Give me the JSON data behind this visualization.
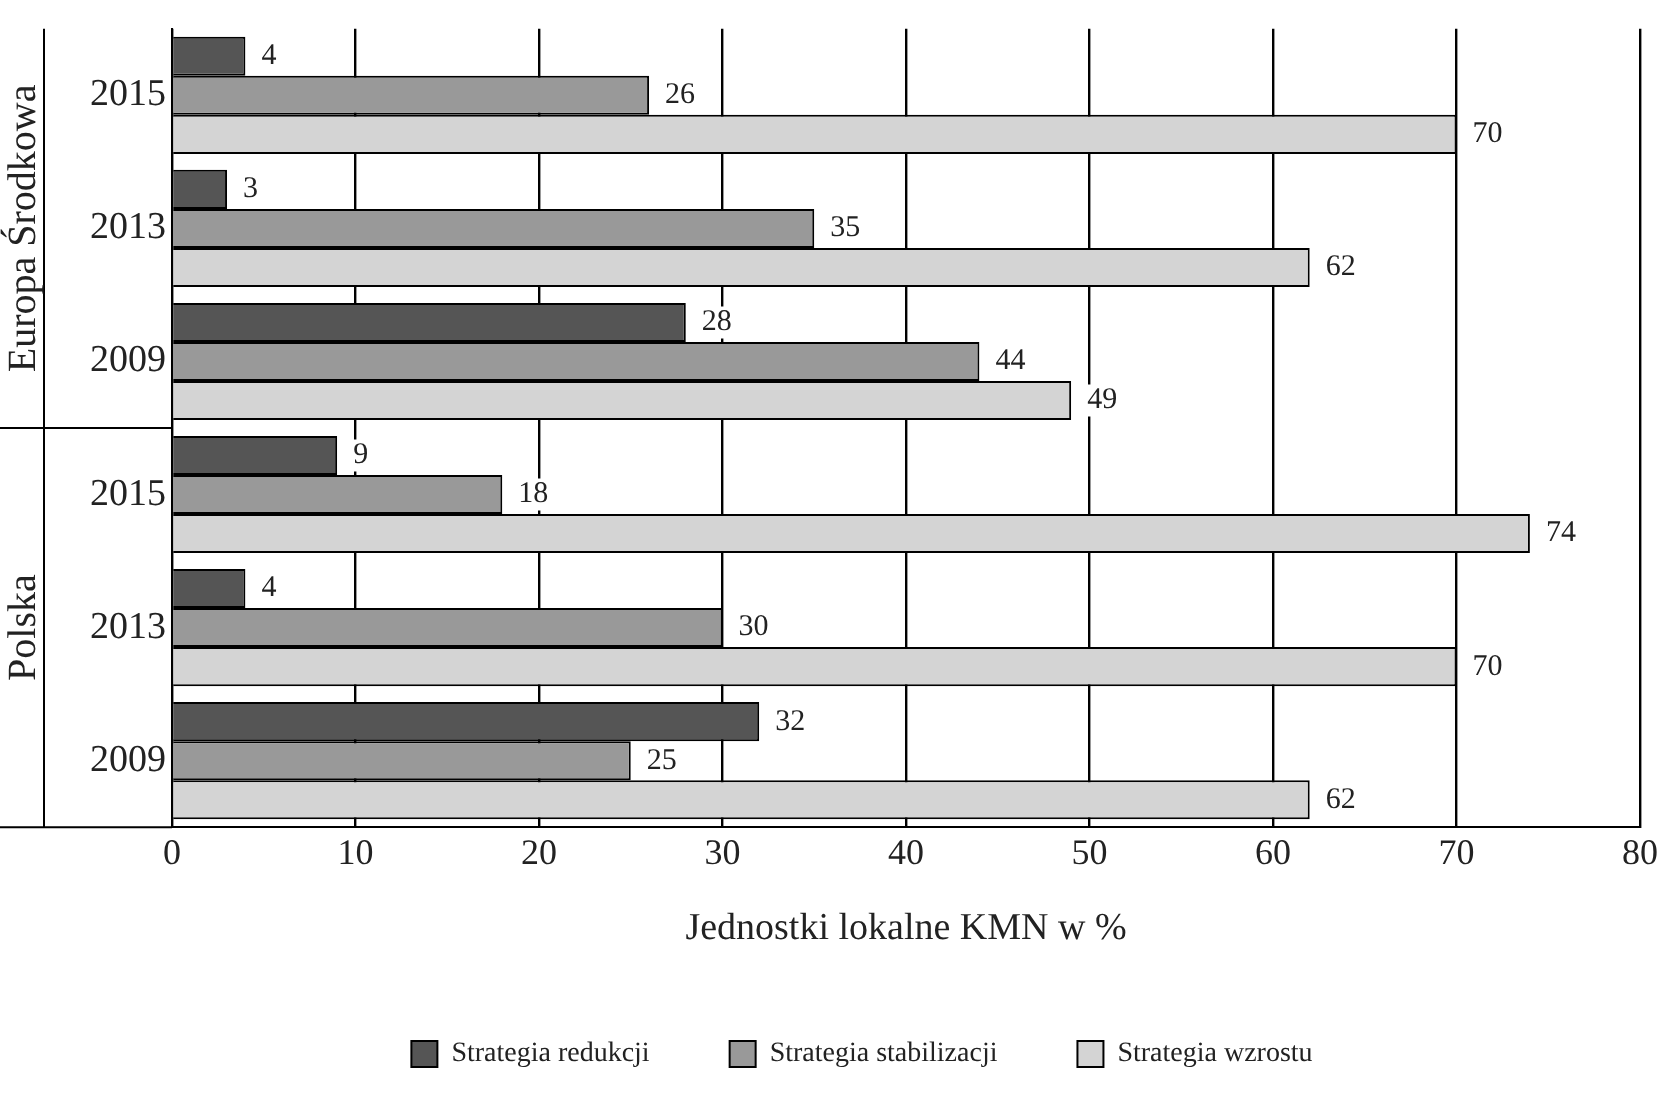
{
  "chart_data": {
    "type": "bar",
    "orientation": "horizontal",
    "xlabel": "Jednostki lokalne KMN w %",
    "categories": [
      "2015",
      "2013",
      "2009",
      "2015",
      "2013",
      "2009"
    ],
    "series": [
      {
        "name": "Strategia redukcji",
        "color": "#555555",
        "values": [
          4,
          3,
          28,
          9,
          4,
          32
        ]
      },
      {
        "name": "Strategia stabilizacji",
        "color": "#999999",
        "values": [
          26,
          35,
          44,
          18,
          30,
          25
        ]
      },
      {
        "name": "Strategia wzrostu",
        "color": "#d4d4d4",
        "values": [
          70,
          62,
          49,
          74,
          70,
          62
        ]
      }
    ],
    "annotations": [
      "Europa Środkowa",
      "Polska"
    ],
    "xlim": [
      0,
      80
    ],
    "xticks": [
      0,
      10,
      20,
      30,
      40,
      50,
      60,
      70,
      80
    ],
    "grid": "x",
    "legend": "bottom",
    "data_labels": true
  }
}
